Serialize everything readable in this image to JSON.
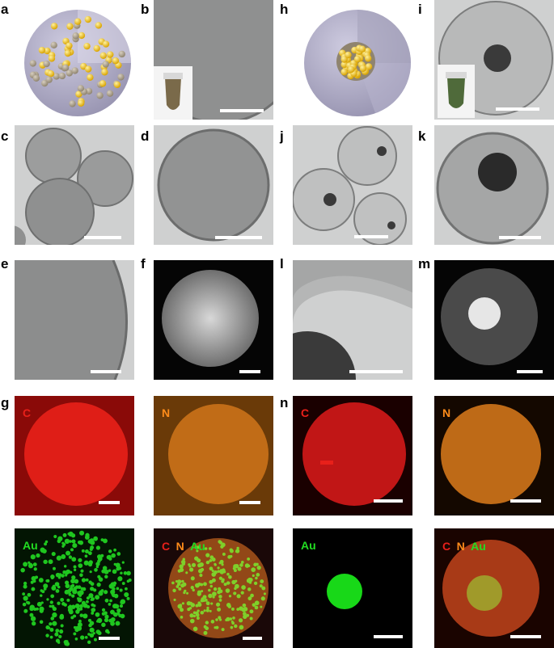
{
  "panel_labels": [
    "a",
    "b",
    "c",
    "d",
    "e",
    "f",
    "g",
    "h",
    "i",
    "j",
    "k",
    "l",
    "m",
    "n"
  ],
  "element_labels": {
    "carbon": "C",
    "nitrogen": "N",
    "gold": "Au"
  },
  "colors": {
    "carbon": "#e8201a",
    "nitrogen": "#ff8c1a",
    "gold": "#22dd22",
    "scalebar": "#ffffff",
    "label": "#000000"
  }
}
